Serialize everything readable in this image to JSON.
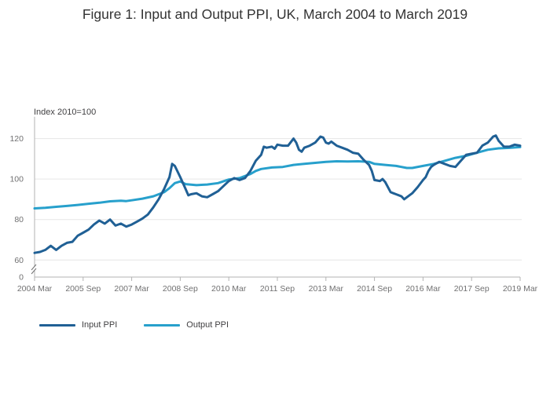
{
  "title": "Figure 1: Input and Output PPI, UK, March 2004 to March 2019",
  "colors": {
    "input": "#206095",
    "output": "#27A0CC",
    "grid": "#e6e6e6",
    "axis": "#b3b3b3"
  },
  "chart_data": {
    "type": "line",
    "title": "Figure 1: Input and Output PPI, UK, March 2004 to March 2019",
    "ylabel": "Index 2010=100",
    "xlabel": "",
    "ylim_main": [
      57,
      130
    ],
    "ylim_break": [
      0,
      0
    ],
    "axis_break": true,
    "yticks": [
      0,
      60,
      80,
      100,
      120
    ],
    "x_start": "2004 Mar",
    "x_end": "2019 Mar",
    "xticks": [
      {
        "label": "2004 Mar",
        "t": 0
      },
      {
        "label": "2005 Sep",
        "t": 18
      },
      {
        "label": "2007 Mar",
        "t": 36
      },
      {
        "label": "2008 Sep",
        "t": 54
      },
      {
        "label": "2010 Mar",
        "t": 72
      },
      {
        "label": "2011 Sep",
        "t": 90
      },
      {
        "label": "2013 Mar",
        "t": 108
      },
      {
        "label": "2014 Sep",
        "t": 126
      },
      {
        "label": "2016 Mar",
        "t": 144
      },
      {
        "label": "2017 Sep",
        "t": 162
      },
      {
        "label": "2019 Mar",
        "t": 180
      }
    ],
    "x_unit": "months since 2004 Mar",
    "series": [
      {
        "name": "Input PPI",
        "points": [
          [
            0,
            63.5
          ],
          [
            2,
            64
          ],
          [
            4,
            65
          ],
          [
            6,
            67
          ],
          [
            8,
            65
          ],
          [
            10,
            67
          ],
          [
            12,
            68.5
          ],
          [
            14,
            69
          ],
          [
            16,
            72
          ],
          [
            18,
            73.5
          ],
          [
            20,
            75
          ],
          [
            22,
            77.5
          ],
          [
            24,
            79.5
          ],
          [
            26,
            78
          ],
          [
            28,
            80
          ],
          [
            30,
            77
          ],
          [
            32,
            78
          ],
          [
            34,
            76.5
          ],
          [
            36,
            77.5
          ],
          [
            38,
            79
          ],
          [
            40,
            80.5
          ],
          [
            42,
            82.5
          ],
          [
            44,
            86
          ],
          [
            46,
            90
          ],
          [
            48,
            95
          ],
          [
            50,
            101
          ],
          [
            51,
            107.5
          ],
          [
            52,
            106.5
          ],
          [
            54,
            101
          ],
          [
            56,
            95
          ],
          [
            57,
            92
          ],
          [
            58,
            92.5
          ],
          [
            60,
            93
          ],
          [
            62,
            91.5
          ],
          [
            64,
            91
          ],
          [
            66,
            92.5
          ],
          [
            68,
            94
          ],
          [
            70,
            96.5
          ],
          [
            72,
            99
          ],
          [
            74,
            100.5
          ],
          [
            76,
            99.5
          ],
          [
            78,
            100.5
          ],
          [
            80,
            104
          ],
          [
            82,
            109
          ],
          [
            84,
            112
          ],
          [
            85,
            116
          ],
          [
            86,
            115.5
          ],
          [
            88,
            116
          ],
          [
            89,
            115
          ],
          [
            90,
            117
          ],
          [
            92,
            116.5
          ],
          [
            94,
            116.5
          ],
          [
            96,
            120
          ],
          [
            97,
            118
          ],
          [
            98,
            114.5
          ],
          [
            99,
            113.5
          ],
          [
            100,
            115.5
          ],
          [
            102,
            116.5
          ],
          [
            104,
            118
          ],
          [
            106,
            121
          ],
          [
            107,
            120.5
          ],
          [
            108,
            118
          ],
          [
            109,
            117.5
          ],
          [
            110,
            118.5
          ],
          [
            112,
            116.5
          ],
          [
            114,
            115.5
          ],
          [
            116,
            114.5
          ],
          [
            118,
            113
          ],
          [
            120,
            112.5
          ],
          [
            122,
            109.5
          ],
          [
            124,
            107
          ],
          [
            125,
            104
          ],
          [
            126,
            99.5
          ],
          [
            128,
            99
          ],
          [
            129,
            100
          ],
          [
            130,
            98.5
          ],
          [
            132,
            93.5
          ],
          [
            133,
            93
          ],
          [
            134,
            92.5
          ],
          [
            136,
            91.5
          ],
          [
            137,
            90
          ],
          [
            138,
            91
          ],
          [
            140,
            93
          ],
          [
            142,
            96
          ],
          [
            144,
            99.5
          ],
          [
            145,
            101
          ],
          [
            146,
            104
          ],
          [
            147,
            106
          ],
          [
            148,
            107
          ],
          [
            150,
            108.5
          ],
          [
            152,
            107.5
          ],
          [
            154,
            106.5
          ],
          [
            156,
            106
          ],
          [
            158,
            109
          ],
          [
            160,
            112
          ],
          [
            162,
            112.5
          ],
          [
            164,
            113
          ],
          [
            166,
            116.5
          ],
          [
            168,
            118
          ],
          [
            170,
            121
          ],
          [
            171,
            121.5
          ],
          [
            172,
            119
          ],
          [
            174,
            116
          ],
          [
            176,
            116
          ],
          [
            178,
            117
          ],
          [
            180,
            116.5
          ]
        ]
      },
      {
        "name": "Output PPI",
        "points": [
          [
            0,
            85.5
          ],
          [
            4,
            85.8
          ],
          [
            8,
            86.3
          ],
          [
            12,
            86.7
          ],
          [
            16,
            87.2
          ],
          [
            20,
            87.8
          ],
          [
            24,
            88.3
          ],
          [
            28,
            89
          ],
          [
            32,
            89.3
          ],
          [
            34,
            89.1
          ],
          [
            36,
            89.5
          ],
          [
            40,
            90.3
          ],
          [
            44,
            91.5
          ],
          [
            48,
            93.5
          ],
          [
            50,
            95.5
          ],
          [
            52,
            98
          ],
          [
            54,
            98.8
          ],
          [
            56,
            97.5
          ],
          [
            60,
            97
          ],
          [
            64,
            97.3
          ],
          [
            68,
            98
          ],
          [
            72,
            99.8
          ],
          [
            76,
            100.5
          ],
          [
            80,
            102.5
          ],
          [
            82,
            104
          ],
          [
            84,
            105
          ],
          [
            88,
            105.7
          ],
          [
            92,
            106
          ],
          [
            96,
            107
          ],
          [
            100,
            107.5
          ],
          [
            104,
            108
          ],
          [
            108,
            108.5
          ],
          [
            112,
            108.8
          ],
          [
            116,
            108.7
          ],
          [
            120,
            108.8
          ],
          [
            124,
            108.5
          ],
          [
            126,
            107.5
          ],
          [
            130,
            107
          ],
          [
            134,
            106.5
          ],
          [
            138,
            105.5
          ],
          [
            140,
            105.5
          ],
          [
            144,
            106.5
          ],
          [
            148,
            107.5
          ],
          [
            152,
            109
          ],
          [
            156,
            110.5
          ],
          [
            160,
            111.5
          ],
          [
            164,
            113
          ],
          [
            168,
            114.5
          ],
          [
            172,
            115.2
          ],
          [
            176,
            115.4
          ],
          [
            180,
            115.8
          ]
        ]
      }
    ]
  },
  "legend": [
    {
      "label": "Input PPI",
      "series": "input"
    },
    {
      "label": "Output PPI",
      "series": "output"
    }
  ]
}
